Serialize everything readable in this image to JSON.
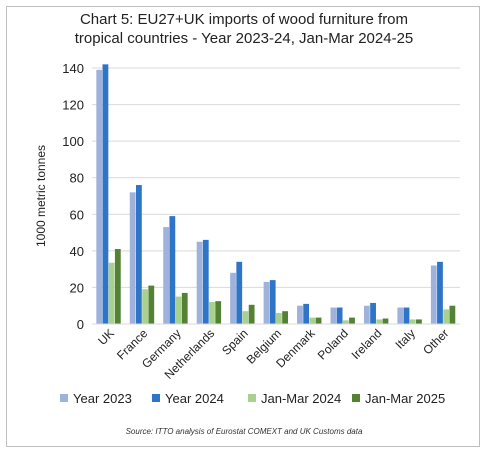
{
  "chart_data": {
    "type": "bar",
    "title_lines": [
      "Chart 5: EU27+UK imports of wood furniture from",
      "tropical countries - Year 2023-24, Jan-Mar 2024-25"
    ],
    "ylabel": "1000 metric tonnes",
    "xlabel": "",
    "ylim": [
      0,
      140
    ],
    "yticks": [
      0,
      20,
      40,
      60,
      80,
      100,
      120,
      140
    ],
    "grid": true,
    "legend_position": "bottom",
    "categories": [
      "UK",
      "France",
      "Germany",
      "Netherlands",
      "Spain",
      "Belgium",
      "Denmark",
      "Poland",
      "Ireland",
      "Italy",
      "Other"
    ],
    "series": [
      {
        "name": "Year 2023",
        "color": "#9fb2dc",
        "values": [
          139,
          72,
          53,
          45,
          28,
          23,
          10,
          9,
          10,
          9,
          32
        ]
      },
      {
        "name": "Year 2024",
        "color": "#2e75c8",
        "values": [
          142,
          76,
          59,
          46,
          34,
          24,
          11,
          9,
          11.5,
          9,
          34
        ]
      },
      {
        "name": "Jan-Mar 2024",
        "color": "#a9d18e",
        "values": [
          33.5,
          19,
          15,
          12,
          7,
          6,
          3.5,
          2,
          2.5,
          2.5,
          8
        ]
      },
      {
        "name": "Jan-Mar 2025",
        "color": "#548235",
        "values": [
          41,
          21,
          17,
          12.5,
          10.5,
          7,
          3.5,
          3.5,
          3,
          2.5,
          10
        ]
      }
    ],
    "source": "Source: ITTO analysis of Eurostat COMEXT and UK Customs data"
  }
}
